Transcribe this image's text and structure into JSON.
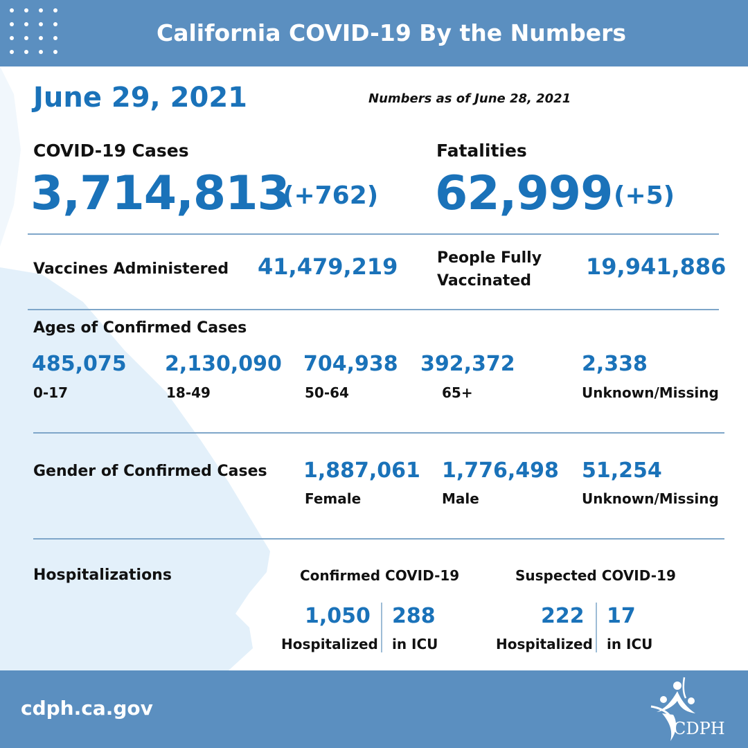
{
  "header": {
    "title": "California COVID-19 By the Numbers"
  },
  "date": "June 29, 2021",
  "as_of": "Numbers as of June 28, 2021",
  "cases": {
    "label": "COVID-19 Cases",
    "value": "3,714,813",
    "delta": "(+762)"
  },
  "fatalities": {
    "label": "Fatalities",
    "value": "62,999",
    "delta": "(+5)"
  },
  "vaccines": {
    "administered_label": "Vaccines Administered",
    "administered_value": "41,479,219",
    "fully_label_line1": "People Fully",
    "fully_label_line2": "Vaccinated",
    "fully_value": "19,941,886"
  },
  "ages": {
    "title": "Ages of Confirmed Cases",
    "groups": [
      {
        "value": "485,075",
        "label": "0-17"
      },
      {
        "value": "2,130,090",
        "label": "18-49"
      },
      {
        "value": "704,938",
        "label": "50-64"
      },
      {
        "value": "392,372",
        "label": "65+"
      },
      {
        "value": "2,338",
        "label": "Unknown/Missing"
      }
    ]
  },
  "gender": {
    "title": "Gender of Confirmed Cases",
    "groups": [
      {
        "value": "1,887,061",
        "label": "Female"
      },
      {
        "value": "1,776,498",
        "label": "Male"
      },
      {
        "value": "51,254",
        "label": "Unknown/Missing"
      }
    ]
  },
  "hospitalizations": {
    "title": "Hospitalizations",
    "confirmed": {
      "title": "Confirmed COVID-19",
      "hospitalized": "1,050",
      "hospitalized_label": "Hospitalized",
      "icu": "288",
      "icu_label": "in ICU"
    },
    "suspected": {
      "title": "Suspected COVID-19",
      "hospitalized": "222",
      "hospitalized_label": "Hospitalized",
      "icu": "17",
      "icu_label": "in ICU"
    }
  },
  "footer": {
    "url": "cdph.ca.gov",
    "logo_text": "CDPH"
  },
  "colors": {
    "accent": "#1a72b9",
    "band": "#5b8fc0",
    "map": "#e3f0fa",
    "rule": "#7ea6c9"
  }
}
